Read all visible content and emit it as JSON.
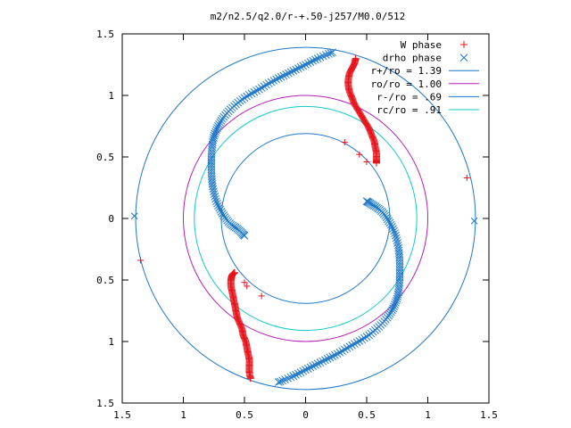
{
  "chart_data": {
    "type": "scatter",
    "title": "m2/n2.5/q2.0/r-+.50-j257/M0.0/512",
    "xlabel": "",
    "ylabel": "",
    "xlim": [
      -1.5,
      1.5
    ],
    "ylim": [
      -1.5,
      1.5
    ],
    "x_ticks": [
      -1.5,
      -1,
      -0.5,
      0,
      0.5,
      1,
      1.5
    ],
    "x_tick_labels": [
      "1.5",
      "1",
      "0.5",
      "0",
      "0.5",
      "1",
      "1.5"
    ],
    "y_ticks": [
      1.5,
      1,
      0.5,
      0,
      -0.5,
      -1,
      -1.5
    ],
    "y_tick_labels": [
      "1.5",
      "1",
      "0.5",
      "0",
      "0.5",
      "1",
      "1.5"
    ],
    "grid": false,
    "legend_position": "top-right",
    "series": [
      {
        "name": "W phase",
        "marker": "plus",
        "color": "#e8141c",
        "arms": [
          [
            [
              0.41,
              1.3
            ],
            [
              0.4,
              1.26
            ],
            [
              0.38,
              1.22
            ],
            [
              0.36,
              1.18
            ],
            [
              0.35,
              1.13
            ],
            [
              0.35,
              1.08
            ],
            [
              0.36,
              1.03
            ],
            [
              0.38,
              0.98
            ],
            [
              0.4,
              0.93
            ],
            [
              0.43,
              0.88
            ],
            [
              0.46,
              0.83
            ],
            [
              0.49,
              0.78
            ],
            [
              0.52,
              0.73
            ],
            [
              0.54,
              0.68
            ],
            [
              0.56,
              0.63
            ],
            [
              0.57,
              0.58
            ],
            [
              0.58,
              0.53
            ],
            [
              0.58,
              0.48
            ],
            [
              0.58,
              0.45
            ]
          ],
          [
            [
              -0.45,
              -1.3
            ],
            [
              -0.46,
              -1.25
            ],
            [
              -0.46,
              -1.2
            ],
            [
              -0.46,
              -1.15
            ],
            [
              -0.47,
              -1.1
            ],
            [
              -0.48,
              -1.05
            ],
            [
              -0.49,
              -1.0
            ],
            [
              -0.51,
              -0.95
            ],
            [
              -0.52,
              -0.9
            ],
            [
              -0.54,
              -0.85
            ],
            [
              -0.56,
              -0.8
            ],
            [
              -0.57,
              -0.75
            ],
            [
              -0.58,
              -0.7
            ],
            [
              -0.59,
              -0.65
            ],
            [
              -0.6,
              -0.6
            ],
            [
              -0.61,
              -0.55
            ],
            [
              -0.61,
              -0.5
            ],
            [
              -0.6,
              -0.46
            ],
            [
              -0.58,
              -0.44
            ]
          ]
        ],
        "points": [
          [
            0.32,
            0.62
          ],
          [
            0.44,
            0.52
          ],
          [
            0.5,
            0.46
          ],
          [
            1.32,
            0.33
          ],
          [
            -1.35,
            -0.34
          ],
          [
            -0.5,
            -0.52
          ],
          [
            -0.48,
            -0.55
          ],
          [
            -0.36,
            -0.63
          ]
        ]
      },
      {
        "name": "drho phase",
        "marker": "cross",
        "color": "#1f78c8",
        "arms": [
          [
            [
              0.22,
              1.35
            ],
            [
              0.1,
              1.3
            ],
            [
              -0.02,
              1.24
            ],
            [
              -0.14,
              1.18
            ],
            [
              -0.26,
              1.12
            ],
            [
              -0.38,
              1.05
            ],
            [
              -0.5,
              0.98
            ],
            [
              -0.6,
              0.9
            ],
            [
              -0.68,
              0.81
            ],
            [
              -0.73,
              0.72
            ],
            [
              -0.76,
              0.62
            ],
            [
              -0.77,
              0.5
            ],
            [
              -0.77,
              0.38
            ],
            [
              -0.76,
              0.26
            ],
            [
              -0.73,
              0.14
            ],
            [
              -0.68,
              0.04
            ],
            [
              -0.62,
              -0.04
            ],
            [
              -0.55,
              -0.09
            ],
            [
              -0.5,
              -0.14
            ]
          ],
          [
            [
              -0.22,
              -1.33
            ],
            [
              -0.1,
              -1.28
            ],
            [
              0.02,
              -1.22
            ],
            [
              0.14,
              -1.16
            ],
            [
              0.26,
              -1.1
            ],
            [
              0.38,
              -1.03
            ],
            [
              0.5,
              -0.96
            ],
            [
              0.6,
              -0.88
            ],
            [
              0.68,
              -0.79
            ],
            [
              0.73,
              -0.7
            ],
            [
              0.76,
              -0.6
            ],
            [
              0.77,
              -0.48
            ],
            [
              0.77,
              -0.36
            ],
            [
              0.76,
              -0.24
            ],
            [
              0.73,
              -0.12
            ],
            [
              0.68,
              -0.02
            ],
            [
              0.62,
              0.06
            ],
            [
              0.55,
              0.11
            ],
            [
              0.5,
              0.14
            ]
          ]
        ],
        "points": [
          [
            1.38,
            -0.02
          ],
          [
            -1.4,
            0.02
          ]
        ]
      }
    ],
    "circles": [
      {
        "name": "r+/ro = 1.39",
        "r": 1.39,
        "color": "#1f78c8"
      },
      {
        "name": "ro/ro = 1.00",
        "r": 1.0,
        "color": "#b41eb4"
      },
      {
        "name": "r-/ro = .69",
        "r": 0.69,
        "color": "#1f78c8"
      },
      {
        "name": "rc/ro = .91",
        "r": 0.91,
        "color": "#14c8c8"
      }
    ]
  }
}
